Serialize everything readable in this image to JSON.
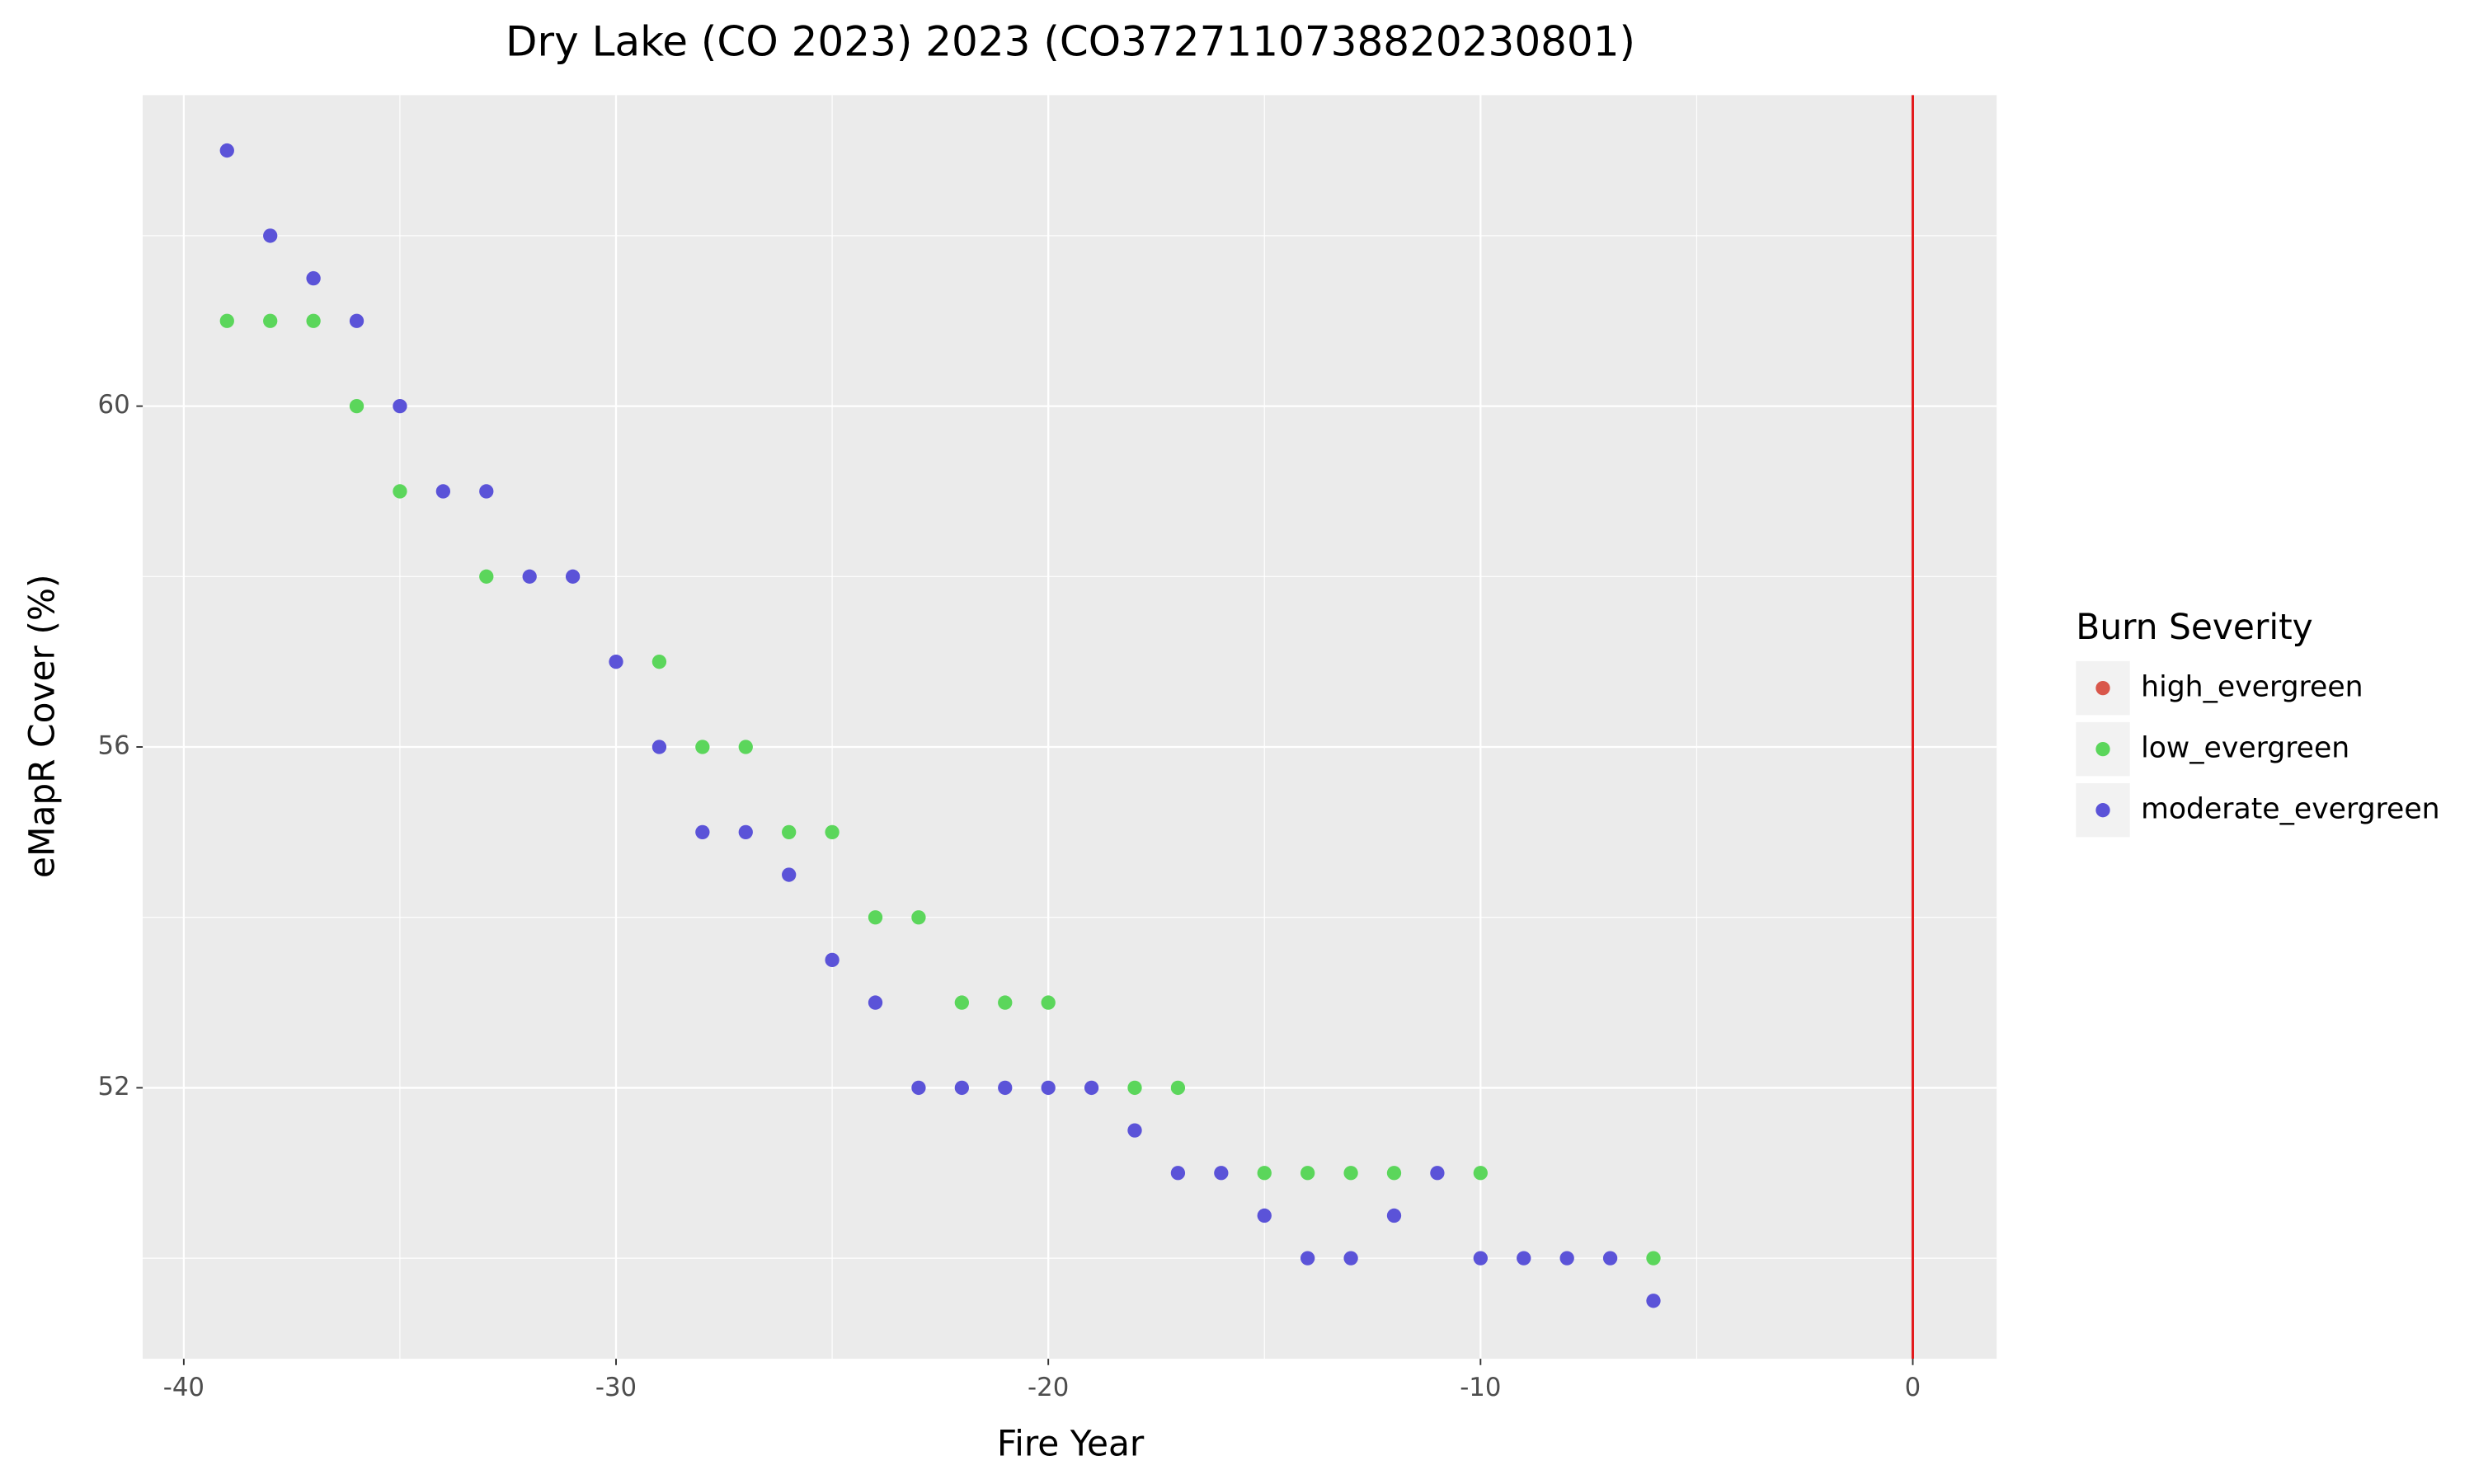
{
  "chart_data": {
    "type": "scatter",
    "title": "Dry Lake (CO 2023) 2023 (CO3727110738820230801)",
    "x_label": "Fire Year",
    "y_label": "eMapR Cover (%)",
    "legend_title": "Burn Severity",
    "legend_position": "right",
    "xlim": [
      -40.95,
      1.94
    ],
    "ylim": [
      48.82,
      63.65
    ],
    "xticks": [
      -40,
      -30,
      -20,
      -10,
      0
    ],
    "yticks": [
      52,
      56,
      60
    ],
    "minor_xticks": [
      -35,
      -25,
      -15,
      -5
    ],
    "minor_yticks": [
      50,
      54,
      58,
      62
    ],
    "grid": true,
    "vline": {
      "x": 0,
      "color": "#e31a1c"
    },
    "series": [
      {
        "name": "high_evergreen",
        "color": "#d9574b",
        "x": [],
        "values": []
      },
      {
        "name": "low_evergreen",
        "color": "#5bd65b",
        "x": [
          -39,
          -38,
          -37,
          -36,
          -35,
          -33,
          -29,
          -28,
          -27,
          -26,
          -25,
          -24,
          -23,
          -22,
          -21,
          -20,
          -18,
          -17,
          -15,
          -14,
          -13,
          -12,
          -10,
          -6
        ],
        "values": [
          61,
          61,
          61,
          60,
          59,
          58,
          57,
          56,
          56,
          55,
          55,
          54,
          54,
          53,
          53,
          53,
          52,
          52,
          51,
          51,
          51,
          51,
          51,
          50
        ]
      },
      {
        "name": "moderate_evergreen",
        "color": "#5b53d8",
        "x": [
          -39,
          -38,
          -37,
          -36,
          -35,
          -34,
          -33,
          -32,
          -31,
          -30,
          -29,
          -28,
          -27,
          -26,
          -25,
          -24,
          -23,
          -22,
          -21,
          -20,
          -19,
          -18,
          -17,
          -16,
          -15,
          -14,
          -13,
          -12,
          -11,
          -10,
          -9,
          -8,
          -7,
          -6
        ],
        "values": [
          63,
          62,
          61.5,
          61,
          60,
          59,
          59,
          58,
          58,
          57,
          56,
          55,
          55,
          54.5,
          53.5,
          53,
          52,
          52,
          52,
          52,
          52,
          51.5,
          51,
          51,
          50.5,
          50,
          50,
          50.5,
          51,
          50,
          50,
          50,
          50,
          49.5
        ]
      }
    ]
  }
}
